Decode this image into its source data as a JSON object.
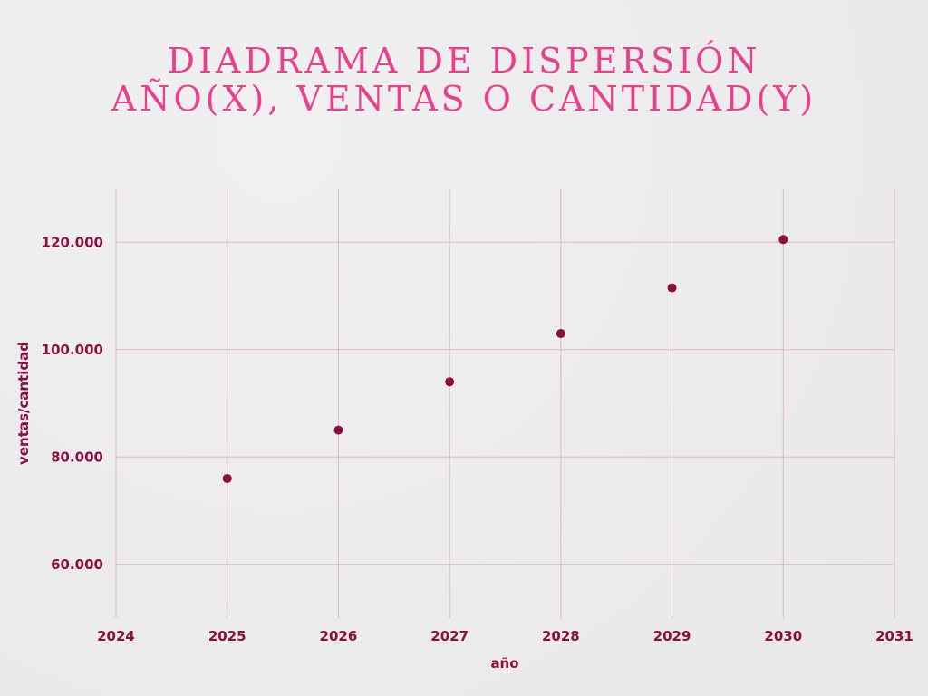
{
  "chart_data": {
    "type": "scatter",
    "title_lines": [
      "DIADRAMA DE DISPERSIÓN",
      "AÑO(X), VENTAS O CANTIDAD(Y)"
    ],
    "xlabel": "año",
    "ylabel": "ventas/cantidad",
    "xlim": [
      2024,
      2031
    ],
    "ylim": [
      50000,
      130000
    ],
    "x_ticks": [
      2024,
      2025,
      2026,
      2027,
      2028,
      2029,
      2030,
      2031
    ],
    "x_tick_labels": [
      "2024",
      "2025",
      "2026",
      "2027",
      "2028",
      "2029",
      "2030",
      "2031"
    ],
    "y_ticks": [
      60000,
      80000,
      100000,
      120000
    ],
    "y_tick_labels": [
      "60.000",
      "80.000",
      "100.000",
      "120.000"
    ],
    "grid": true,
    "points": [
      {
        "x": 2025,
        "y": 76000
      },
      {
        "x": 2026,
        "y": 85000
      },
      {
        "x": 2027,
        "y": 94000
      },
      {
        "x": 2028,
        "y": 103000
      },
      {
        "x": 2029,
        "y": 111500
      },
      {
        "x": 2030,
        "y": 120500
      }
    ],
    "colors": {
      "title": "#e8408a",
      "marker": "#8a0f40",
      "grid": "#dcb7c4",
      "text": "#8a0f40"
    }
  }
}
